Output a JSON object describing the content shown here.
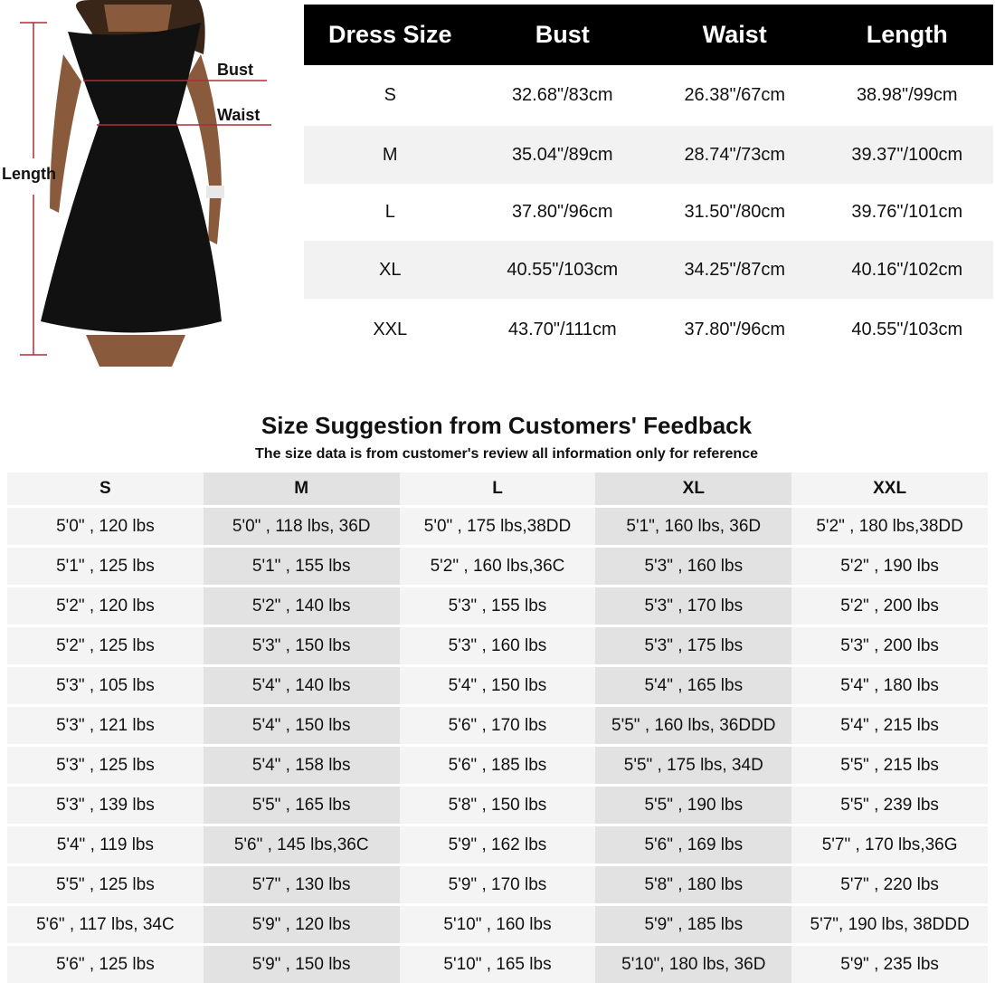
{
  "figure": {
    "labels": {
      "bust": "Bust",
      "waist": "Waist",
      "length": "Length"
    },
    "line_color": "#b22a3a",
    "dress_color": "#111111"
  },
  "size_chart": {
    "headers": [
      "Dress Size",
      "Bust",
      "Waist",
      "Length"
    ],
    "rows": [
      [
        "S",
        "32.68\"/83cm",
        "26.38\"/67cm",
        "38.98\"/99cm"
      ],
      [
        "M",
        "35.04\"/89cm",
        "28.74\"/73cm",
        "39.37\"/100cm"
      ],
      [
        "L",
        "37.80\"/96cm",
        "31.50\"/80cm",
        "39.76\"/101cm"
      ],
      [
        "XL",
        "40.55\"/103cm",
        "34.25\"/87cm",
        "40.16\"/102cm"
      ],
      [
        "XXL",
        "43.70\"/111cm",
        "37.80\"/96cm",
        "40.55\"/103cm"
      ]
    ]
  },
  "feedback": {
    "title": "Size Suggestion from Customers' Feedback",
    "subtitle": "The size data is from customer's review all information only for reference",
    "headers": [
      "S",
      "M",
      "L",
      "XL",
      "XXL"
    ],
    "rows": [
      [
        "5'0\" , 120 lbs",
        "5'0\" , 118 lbs, 36D",
        "5'0\" , 175 lbs,38DD",
        "5'1\", 160 lbs, 36D",
        "5'2\" , 180 lbs,38DD"
      ],
      [
        "5'1\" , 125 lbs",
        "5'1\" , 155 lbs",
        "5'2\" , 160 lbs,36C",
        "5'3\" , 160 lbs",
        "5'2\" , 190 lbs"
      ],
      [
        "5'2\" , 120 lbs",
        "5'2\" , 140 lbs",
        "5'3\" , 155 lbs",
        "5'3\" , 170 lbs",
        "5'2\" , 200 lbs"
      ],
      [
        "5'2\" , 125 lbs",
        "5'3\" , 150 lbs",
        "5'3\" , 160 lbs",
        "5'3\" , 175 lbs",
        "5'3\" , 200 lbs"
      ],
      [
        "5'3\" , 105 lbs",
        "5'4\" , 140 lbs",
        "5'4\" , 150 lbs",
        "5'4\" , 165 lbs",
        "5'4\" , 180 lbs"
      ],
      [
        "5'3\" , 121 lbs",
        "5'4\" , 150 lbs",
        "5'6\" , 170 lbs",
        "5'5\" , 160 lbs, 36DDD",
        "5'4\" , 215 lbs"
      ],
      [
        "5'3\" , 125 lbs",
        "5'4\" , 158 lbs",
        "5'6\" , 185 lbs",
        "5'5\" , 175 lbs, 34D",
        "5'5\" , 215 lbs"
      ],
      [
        "5'3\" , 139 lbs",
        "5'5\" , 165 lbs",
        "5'8\" , 150 lbs",
        "5'5\" , 190 lbs",
        "5'5\" , 239 lbs"
      ],
      [
        "5'4\" , 119 lbs",
        "5'6\" , 145 lbs,36C",
        "5'9\" , 162 lbs",
        "5'6\" , 169 lbs",
        "5'7\" , 170 lbs,36G"
      ],
      [
        "5'5\" , 125 lbs",
        "5'7\" , 130 lbs",
        "5'9\" , 170 lbs",
        "5'8\" , 180 lbs",
        "5'7\" , 220 lbs"
      ],
      [
        "5'6\" , 117 lbs, 34C",
        "5'9\" , 120 lbs",
        "5'10\" , 160 lbs",
        "5'9\" , 185 lbs",
        "5'7\", 190 lbs, 38DDD"
      ],
      [
        "5'6\" , 125 lbs",
        "5'9\" , 150 lbs",
        "5'10\" , 165 lbs",
        "5'10\", 180 lbs, 36D",
        "5'9\" , 235 lbs"
      ]
    ]
  }
}
